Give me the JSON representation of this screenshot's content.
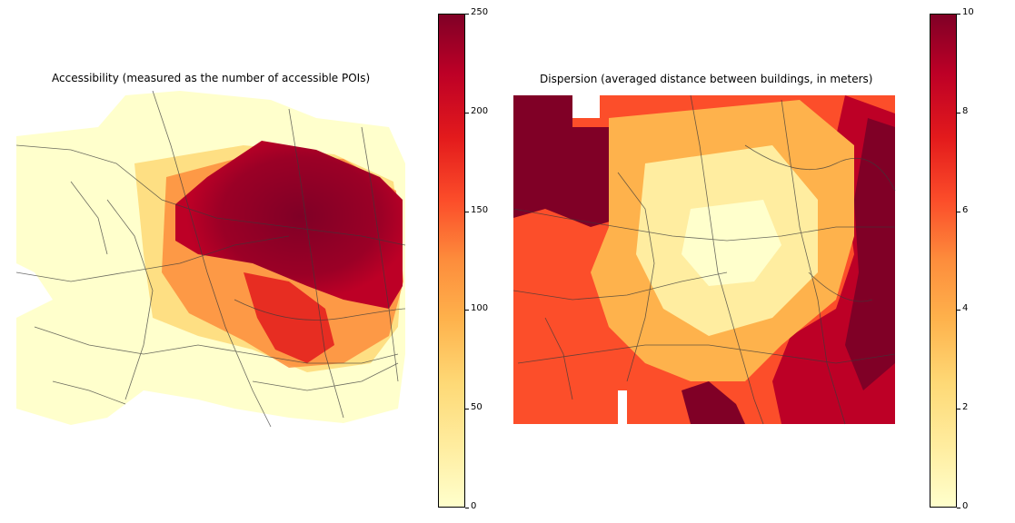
{
  "panels": {
    "left": {
      "title": "Accessibility (measured as the number of accessible POIs)",
      "colorbar": {
        "ticks": [
          "0",
          "50",
          "100",
          "150",
          "200",
          "250"
        ],
        "min": 0,
        "max": 250,
        "colormap": "YlOrRd"
      }
    },
    "right": {
      "title": "Dispersion (averaged distance between buildings, in meters)",
      "colorbar": {
        "ticks": [
          "0",
          "2",
          "4",
          "6",
          "8",
          "10"
        ],
        "min": 0,
        "max": 10,
        "colormap": "YlOrRd"
      }
    }
  },
  "colors": {
    "low": "#ffffcc",
    "mid": "#fd8d3c",
    "high": "#800026",
    "roads": "#3a3a3a"
  }
}
